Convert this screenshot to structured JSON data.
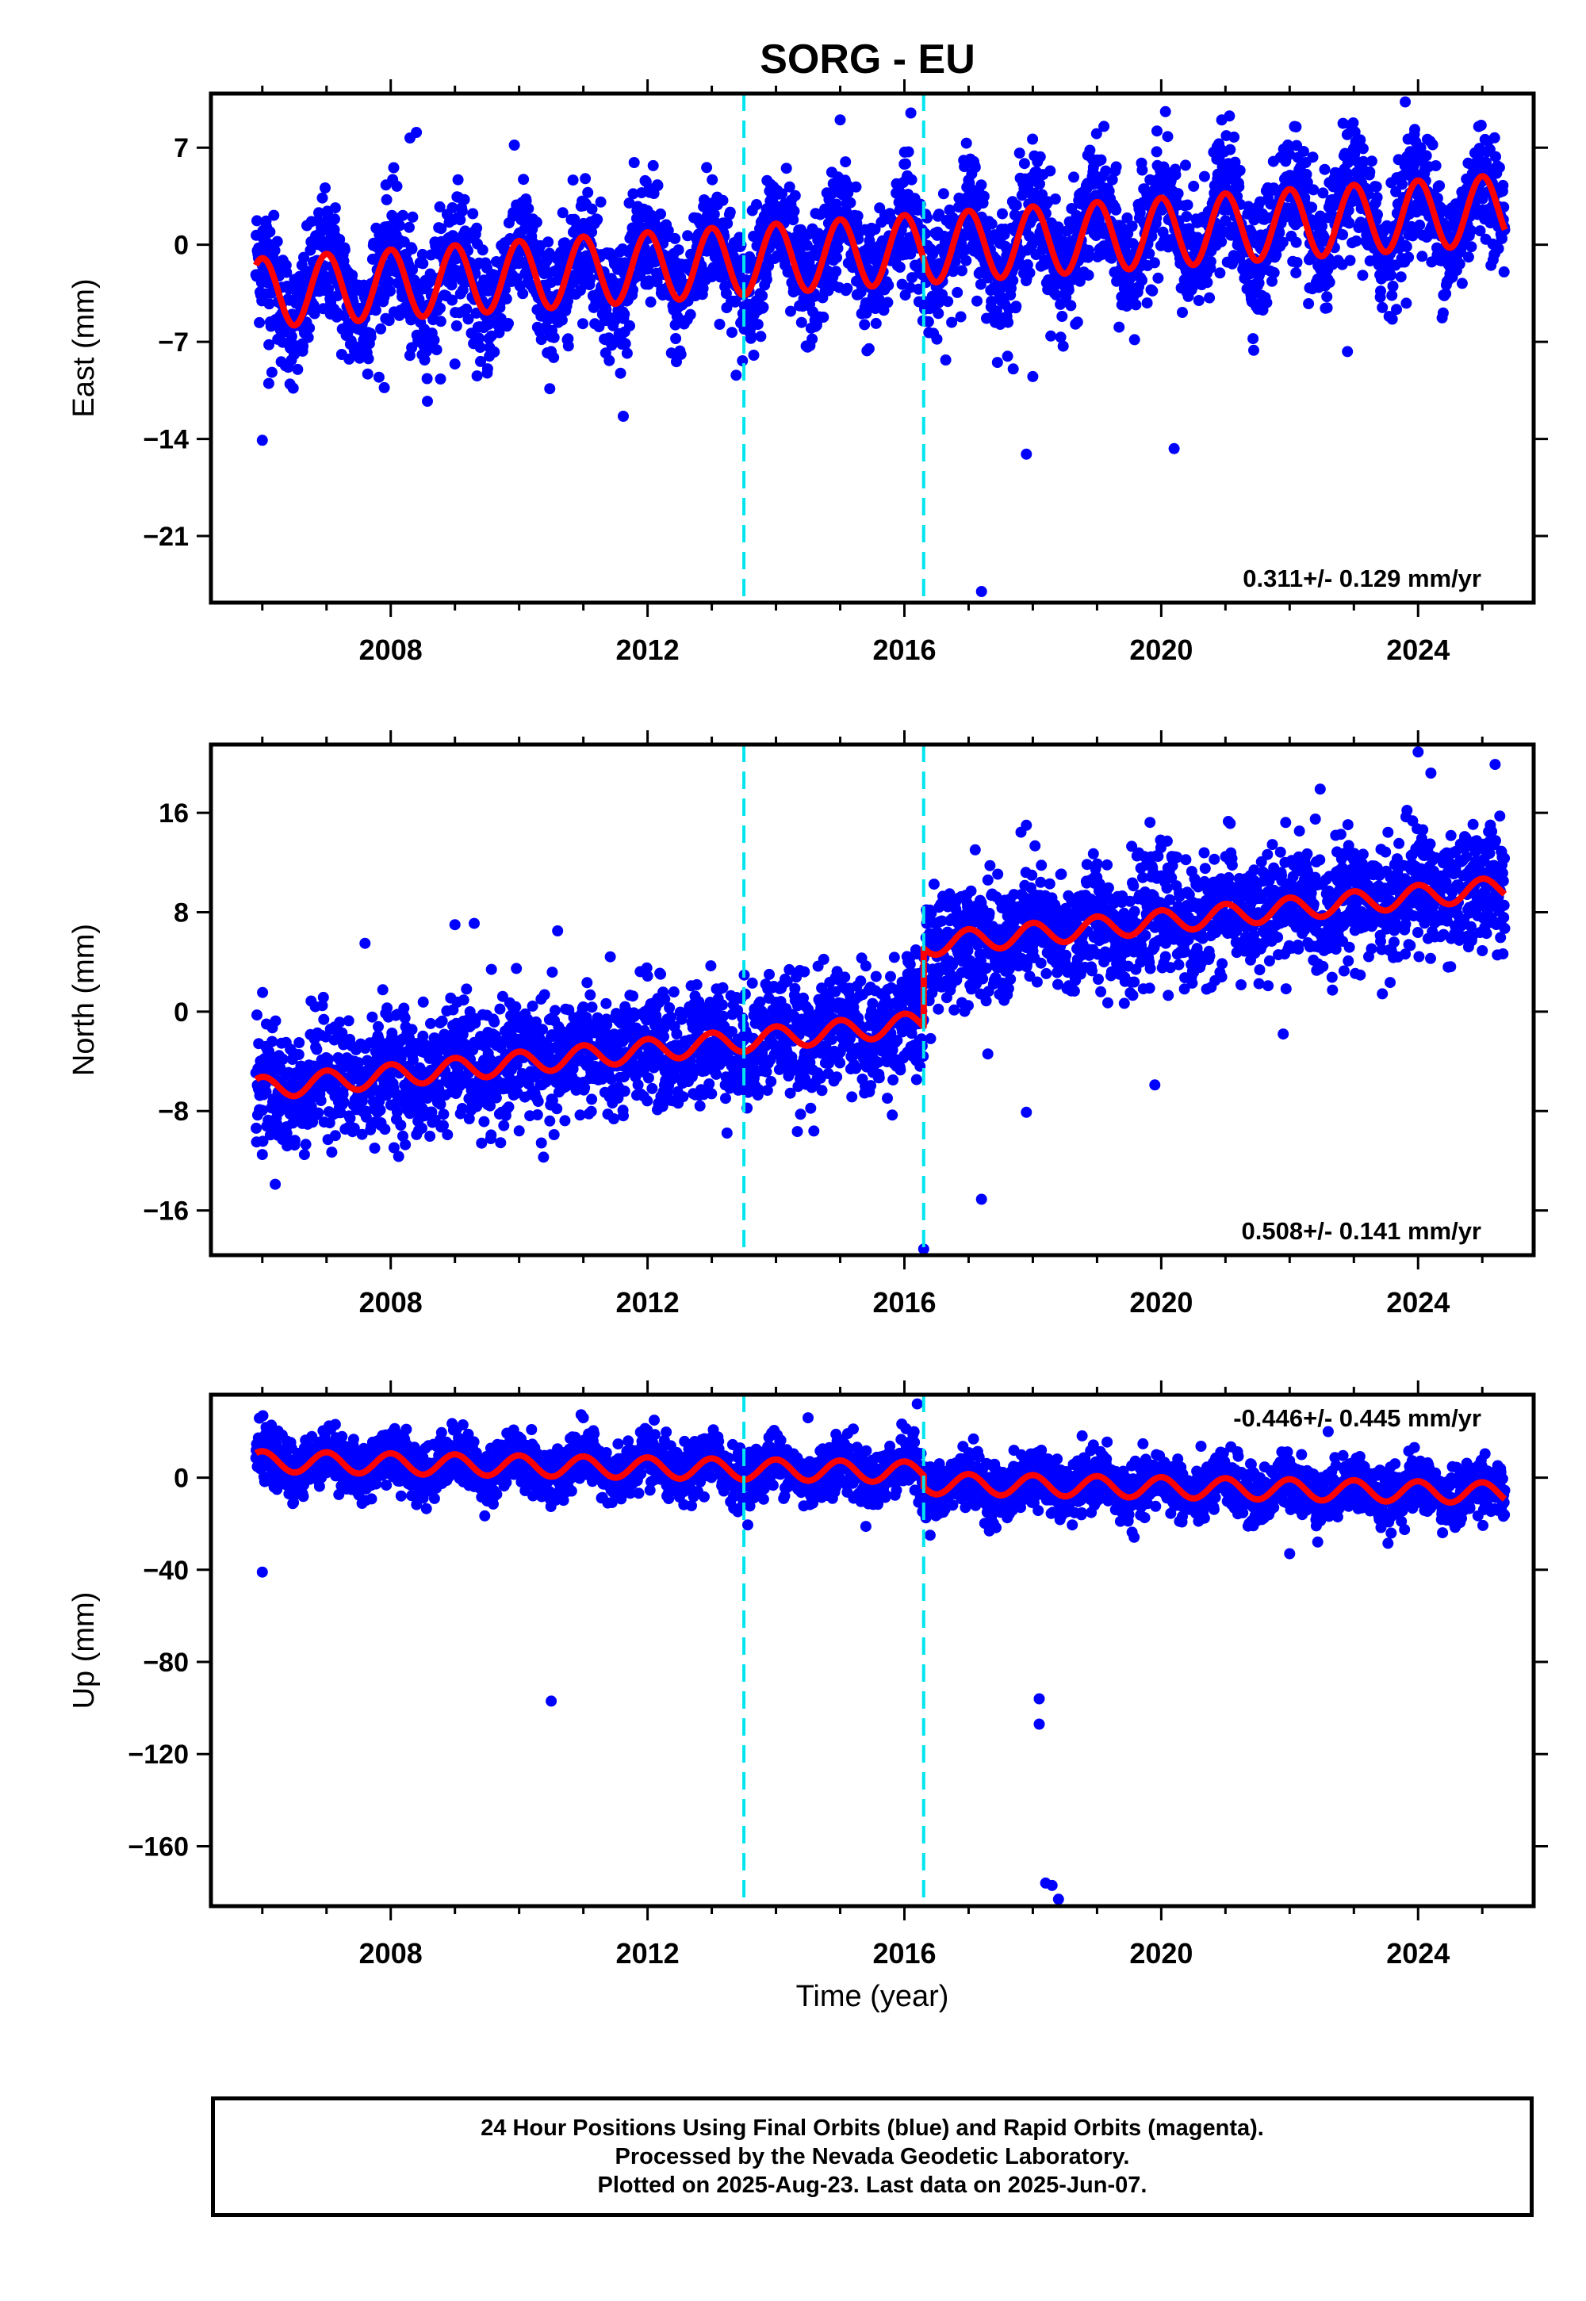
{
  "title": "SORG - EU",
  "colors": {
    "points": "#0000ff",
    "model": "#ff0000",
    "offset_lines": "#00e5ee",
    "axes": "#000000"
  },
  "chart_data": [
    {
      "type": "scatter",
      "panel": "east",
      "ylabel": "East (mm)",
      "xlabel": "",
      "rate_label": "0.311+/- 0.129 mm/yr",
      "rate_position": "bottom-right",
      "xlim": [
        2005.2,
        2025.8
      ],
      "ylim": [
        -25.8,
        10.9
      ],
      "yticks": [
        7,
        0,
        -7,
        -14,
        -21
      ],
      "ytick_labels": [
        "7",
        "0",
        "−7",
        "−14",
        "−21"
      ],
      "xticks": [
        2008,
        2012,
        2016,
        2020,
        2024
      ],
      "xtick_labels": [
        "2008",
        "2012",
        "2016",
        "2020",
        "2024"
      ],
      "offset_lines": [
        2013.5,
        2016.3
      ],
      "model": {
        "start": 2005.9,
        "end": 2025.35,
        "value_start": -3.5,
        "trend": 0.311,
        "annual_amplitude": 2.5,
        "offset_at": 2016.3,
        "offset": 0
      },
      "scatter_spread": 2.2,
      "outliers": [
        {
          "x": 2006.0,
          "y": -14.1
        },
        {
          "x": 2006.1,
          "y": -10.0
        },
        {
          "x": 2006.15,
          "y": -9.2
        },
        {
          "x": 2007.9,
          "y": -10.3
        },
        {
          "x": 2008.3,
          "y": 7.7
        },
        {
          "x": 2008.4,
          "y": 8.1
        },
        {
          "x": 2009.0,
          "y": -8.6
        },
        {
          "x": 2010.5,
          "y": -7.7
        },
        {
          "x": 2015.0,
          "y": 9.0
        },
        {
          "x": 2016.1,
          "y": 9.5
        },
        {
          "x": 2017.2,
          "y": -25.0
        },
        {
          "x": 2017.9,
          "y": -15.1
        },
        {
          "x": 2018.0,
          "y": -9.5
        },
        {
          "x": 2020.1,
          "y": 7.8
        },
        {
          "x": 2020.2,
          "y": -14.7
        },
        {
          "x": 2022.1,
          "y": 8.5
        },
        {
          "x": 2022.9,
          "y": -7.7
        },
        {
          "x": 2023.8,
          "y": 10.3
        }
      ]
    },
    {
      "type": "scatter",
      "panel": "north",
      "ylabel": "North (mm)",
      "xlabel": "",
      "rate_label": "0.508+/- 0.141 mm/yr",
      "rate_position": "bottom-right",
      "xlim": [
        2005.2,
        2025.8
      ],
      "ylim": [
        -19.6,
        21.5
      ],
      "yticks": [
        16,
        8,
        0,
        -8,
        -16
      ],
      "ytick_labels": [
        "16",
        "8",
        "0",
        "−8",
        "−16"
      ],
      "xticks": [
        2008,
        2012,
        2016,
        2020,
        2024
      ],
      "xtick_labels": [
        "2008",
        "2012",
        "2016",
        "2020",
        "2024"
      ],
      "offset_lines": [
        2013.5,
        2016.3
      ],
      "model": {
        "start": 2005.9,
        "end": 2025.35,
        "value_start": -6.2,
        "trend": 0.508,
        "annual_amplitude": 0.9,
        "offset_at": 2016.3,
        "offset": 6.3
      },
      "scatter_spread": 2.4,
      "outliers": [
        {
          "x": 2006.0,
          "y": -11.5
        },
        {
          "x": 2007.6,
          "y": 5.5
        },
        {
          "x": 2009.0,
          "y": 7.0
        },
        {
          "x": 2009.3,
          "y": 7.1
        },
        {
          "x": 2010.0,
          "y": -9.6
        },
        {
          "x": 2010.6,
          "y": 6.5
        },
        {
          "x": 2016.3,
          "y": -19.1
        },
        {
          "x": 2017.2,
          "y": -15.1
        },
        {
          "x": 2017.3,
          "y": -3.4
        },
        {
          "x": 2017.9,
          "y": -8.1
        },
        {
          "x": 2017.9,
          "y": 15.0
        },
        {
          "x": 2019.9,
          "y": -5.9
        },
        {
          "x": 2021.9,
          "y": -1.8
        },
        {
          "x": 2022.4,
          "y": 15.5
        },
        {
          "x": 2024.0,
          "y": 20.9
        },
        {
          "x": 2024.2,
          "y": 19.2
        },
        {
          "x": 2025.2,
          "y": 19.9
        }
      ]
    },
    {
      "type": "scatter",
      "panel": "up",
      "ylabel": "Up (mm)",
      "xlabel": "Time (year)",
      "rate_label": "-0.446+/- 0.445 mm/yr",
      "rate_position": "top-right",
      "xlim": [
        2005.2,
        2025.8
      ],
      "ylim": [
        -186,
        36
      ],
      "yticks": [
        0,
        -40,
        -80,
        -120,
        -160
      ],
      "ytick_labels": [
        "0",
        "−40",
        "−80",
        "−120",
        "−160"
      ],
      "xticks": [
        2008,
        2012,
        2016,
        2020,
        2024
      ],
      "xtick_labels": [
        "2008",
        "2012",
        "2016",
        "2020",
        "2024"
      ],
      "offset_lines": [
        2013.5,
        2016.3
      ],
      "model": {
        "start": 2005.9,
        "end": 2025.35,
        "value_start": 7,
        "trend": -0.446,
        "annual_amplitude": 4.5,
        "offset_at": 2016.3,
        "offset": -5
      },
      "scatter_spread": 6,
      "outliers": [
        {
          "x": 2006.0,
          "y": -41
        },
        {
          "x": 2010.5,
          "y": -97
        },
        {
          "x": 2011.0,
          "y": 26
        },
        {
          "x": 2014.5,
          "y": 26
        },
        {
          "x": 2016.2,
          "y": 32
        },
        {
          "x": 2016.4,
          "y": -25
        },
        {
          "x": 2018.1,
          "y": -96
        },
        {
          "x": 2018.1,
          "y": -107
        },
        {
          "x": 2018.2,
          "y": -176
        },
        {
          "x": 2018.3,
          "y": -177
        },
        {
          "x": 2018.4,
          "y": -183
        },
        {
          "x": 2022.0,
          "y": -33
        },
        {
          "x": 2022.6,
          "y": 20
        }
      ]
    }
  ],
  "footer": {
    "line1": "24 Hour Positions Using Final Orbits (blue) and Rapid Orbits (magenta).",
    "line2": "Processed by the Nevada Geodetic Laboratory.",
    "line3": "Plotted on 2025-Aug-23. Last data on 2025-Jun-07."
  }
}
